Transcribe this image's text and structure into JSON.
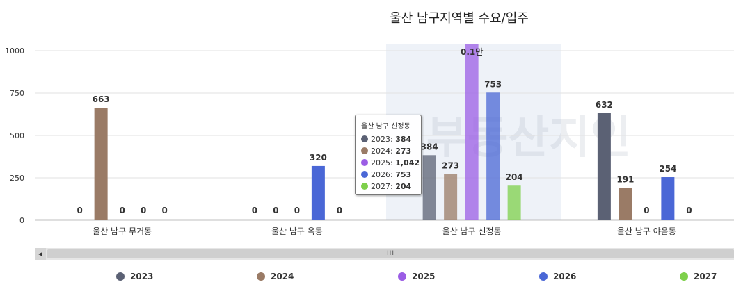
{
  "chart_data": {
    "type": "bar",
    "title": "울산 남구지역별 수요/입주",
    "categories": [
      "울산 남구 무거동",
      "울산 남구 옥동",
      "울산 남구 신정동",
      "울산 남구 야음동"
    ],
    "series": [
      {
        "name": "2023",
        "color": "#5b6174",
        "values": [
          0,
          0,
          384,
          632
        ]
      },
      {
        "name": "2024",
        "color": "#9a7b66",
        "values": [
          663,
          0,
          273,
          191
        ]
      },
      {
        "name": "2025",
        "color": "#9b5de5",
        "values": [
          0,
          0,
          1042,
          0
        ]
      },
      {
        "name": "2026",
        "color": "#4a67d6",
        "values": [
          0,
          320,
          753,
          254
        ]
      },
      {
        "name": "2027",
        "color": "#7ed04b",
        "values": [
          0,
          0,
          204,
          0
        ]
      }
    ],
    "yticks": [
      0,
      250,
      500,
      750,
      1000
    ],
    "ylim": [
      0,
      1000
    ],
    "grid": true,
    "legend_position": "bottom",
    "highlighted_category": "울산 남구 신정동",
    "overflow_label": "0.1만",
    "tooltip": {
      "title": "울산 남구 신정동",
      "rows": [
        {
          "label": "2023:",
          "value": "384",
          "color": "#5b6174"
        },
        {
          "label": "2024:",
          "value": "273",
          "color": "#9a7b66"
        },
        {
          "label": "2025:",
          "value": "1,042",
          "color": "#9b5de5"
        },
        {
          "label": "2026:",
          "value": "753",
          "color": "#4a67d6"
        },
        {
          "label": "2027:",
          "value": "204",
          "color": "#7ed04b"
        }
      ]
    },
    "watermark": "부동산지인"
  },
  "scrollbar": {
    "grip": "III",
    "left_arrow": "◀"
  }
}
